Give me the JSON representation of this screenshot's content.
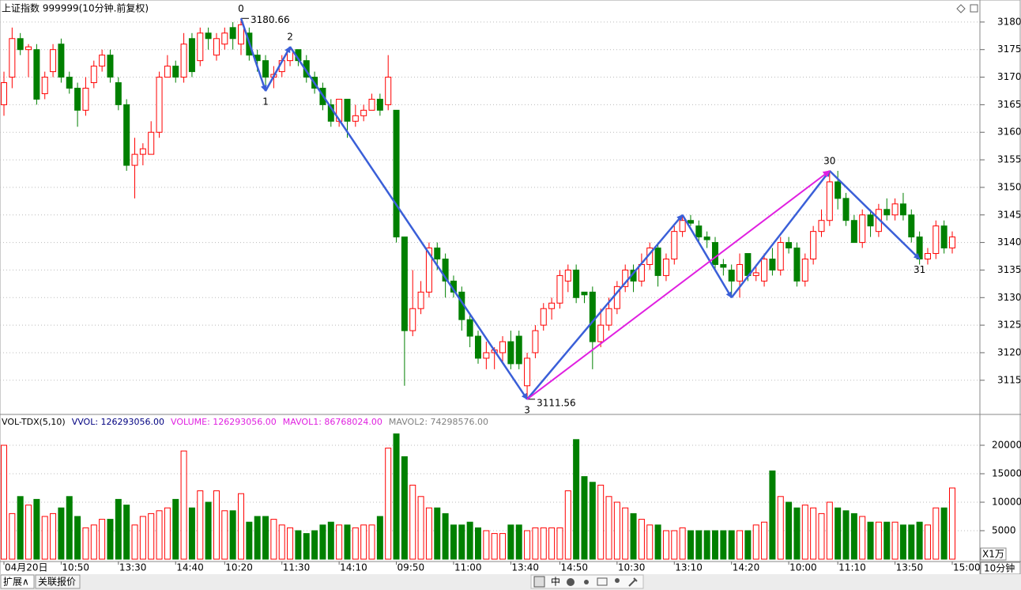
{
  "header": {
    "title": "上证指数 999999(10分钟.前复权)"
  },
  "chart_data": [
    {
      "type": "candlestick",
      "x": [
        "04月20日",
        null,
        null,
        null,
        null,
        null,
        null,
        "10:50",
        null,
        null,
        null,
        null,
        null,
        null,
        "13:30",
        null,
        null,
        null,
        null,
        null,
        null,
        "14:40",
        null,
        null,
        null,
        null,
        null,
        "10:20",
        null,
        null,
        null,
        null,
        null,
        null,
        "11:30",
        null,
        null,
        null,
        null,
        null,
        null,
        "14:10",
        null,
        null,
        null,
        null,
        null,
        null,
        "09:50",
        null,
        null,
        null,
        null,
        null,
        null,
        "11:00",
        null,
        null,
        null,
        null,
        null,
        null,
        "13:40",
        null,
        null,
        null,
        null,
        null,
        "14:50",
        null,
        null,
        null,
        null,
        null,
        null,
        "10:30",
        null,
        null,
        null,
        null,
        null,
        null,
        "13:10",
        null,
        null,
        null,
        null,
        null,
        null,
        "14:20",
        null,
        null,
        null,
        null,
        null,
        null,
        "10:00",
        null,
        null,
        null,
        null,
        null,
        "11:10",
        null,
        null,
        null,
        null,
        null,
        null,
        "13:50",
        null,
        null,
        null,
        null,
        null,
        null,
        "15:00"
      ],
      "open": [
        3165,
        3170,
        3177,
        3175,
        3175,
        3167,
        3171,
        3176,
        3170,
        3168,
        3164,
        3169,
        3172,
        3174,
        3169,
        3165,
        3154,
        3156,
        3156,
        3160,
        3170,
        3172,
        3170,
        3177,
        3173,
        3178,
        3174,
        3176,
        3179,
        3176,
        3178,
        3174,
        3173,
        3170,
        3171,
        3173,
        3175,
        3173,
        3170,
        3168,
        3165,
        3162,
        3166,
        3162,
        3163,
        3164,
        3166,
        3165,
        3164,
        3141,
        3124,
        3128,
        3131,
        3139,
        3137,
        3133,
        3131,
        3126,
        3123,
        3119,
        3120,
        3120,
        3122,
        3123,
        3114,
        3120,
        3125,
        3128,
        3129,
        3133,
        3135,
        3131,
        3131,
        3122,
        3125,
        3128,
        3132,
        3135,
        3133,
        3136,
        3139,
        3134,
        3137,
        3142,
        3144,
        3143,
        3141,
        3140,
        3136,
        3135,
        3133,
        3138,
        3134,
        3133,
        3137,
        3135,
        3140,
        3139,
        3133,
        3137,
        3142,
        3144,
        3151,
        3148,
        3144,
        3140,
        3145,
        3142,
        3146,
        3145,
        3147,
        3145,
        3141,
        3137,
        3138,
        3143,
        3139
      ],
      "close": [
        3169,
        3177,
        3175,
        3175.5,
        3166,
        3170,
        3175,
        3170,
        3168,
        3164,
        3168,
        3172,
        3174,
        3170,
        3165,
        3154,
        3156,
        3157,
        3160,
        3170,
        3172,
        3170,
        3176,
        3171,
        3178,
        3177,
        3177,
        3178,
        3177,
        3179.5,
        3174,
        3173,
        3170,
        3170.5,
        3173,
        3175,
        3173,
        3170,
        3168,
        3165,
        3162,
        3166,
        3162,
        3163,
        3164,
        3166,
        3164,
        3170,
        3141,
        3124,
        3128,
        3131,
        3139,
        3137,
        3133,
        3131,
        3126,
        3123,
        3119,
        3120,
        3120.5,
        3122,
        3118,
        3118,
        3119,
        3124,
        3128,
        3129,
        3134,
        3135,
        3130,
        3130.5,
        3122,
        3125,
        3128,
        3132,
        3135,
        3133,
        3136,
        3139,
        3134,
        3137,
        3142,
        3144,
        3143.5,
        3141,
        3140.5,
        3136,
        3135.5,
        3133,
        3136,
        3134,
        3134.5,
        3137,
        3135,
        3140,
        3139,
        3133,
        3137,
        3142,
        3144,
        3151,
        3148,
        3144,
        3140,
        3145,
        3143,
        3146,
        3145,
        3147,
        3145,
        3141,
        3137,
        3138,
        3143,
        3139,
        3141
      ],
      "high": [
        3171,
        3179,
        3178,
        3176,
        3176,
        3171,
        3176,
        3177,
        3171,
        3169,
        3170,
        3173,
        3175,
        3175,
        3170,
        3166,
        3159,
        3158,
        3162,
        3171,
        3174,
        3173,
        3178,
        3178,
        3179,
        3179,
        3178,
        3179,
        3180,
        3180.66,
        3179,
        3175,
        3174,
        3172,
        3174,
        3175.5,
        3175,
        3174,
        3171,
        3169,
        3166,
        3166,
        3166,
        3165,
        3165,
        3167,
        3167,
        3174,
        3164,
        3141,
        3135,
        3133,
        3140,
        3140,
        3138,
        3134,
        3132,
        3127,
        3124,
        3122,
        3121,
        3123,
        3124,
        3124,
        3120,
        3125,
        3129,
        3130,
        3135,
        3136,
        3136,
        3131,
        3132,
        3128,
        3130,
        3133,
        3136,
        3136,
        3138,
        3140,
        3140,
        3138,
        3143,
        3145,
        3145,
        3144,
        3142,
        3141,
        3137,
        3136,
        3138,
        3138,
        3136,
        3138,
        3139,
        3141,
        3141,
        3140,
        3138,
        3143,
        3146,
        3153,
        3153,
        3149,
        3145,
        3146,
        3146,
        3147,
        3148,
        3148,
        3149,
        3146,
        3142,
        3139,
        3144,
        3144,
        3142
      ],
      "low": [
        3163,
        3168,
        3174,
        3170,
        3165,
        3166,
        3170,
        3169,
        3167,
        3161,
        3163,
        3168,
        3171,
        3169,
        3164,
        3153,
        3148,
        3154,
        3156,
        3159,
        3170,
        3169,
        3169,
        3170,
        3172,
        3175,
        3173,
        3175,
        3175,
        3174,
        3173,
        3171,
        3167.5,
        3168,
        3170,
        3172,
        3172,
        3169,
        3167,
        3164,
        3161,
        3161,
        3159,
        3161,
        3162,
        3164,
        3163,
        3164,
        3140,
        3114,
        3123,
        3127,
        3130,
        3135,
        3130,
        3130,
        3124,
        3121,
        3118,
        3117,
        3117,
        3118,
        3117,
        3117,
        3111.56,
        3119,
        3124,
        3126,
        3128,
        3131,
        3129,
        3129,
        3117,
        3121,
        3124,
        3127,
        3131,
        3131,
        3132,
        3135,
        3132,
        3133,
        3136,
        3141,
        3143,
        3140,
        3139,
        3135,
        3134,
        3130,
        3130,
        3133,
        3133,
        3132,
        3134,
        3134,
        3138,
        3132,
        3132,
        3136,
        3141,
        3143,
        3146,
        3143,
        3140,
        3139,
        3141,
        3141,
        3144,
        3144,
        3144,
        3140,
        3136,
        3136,
        3137,
        3138,
        3138
      ],
      "up_color": "#ff0000",
      "down_color": "#008000",
      "ylim": [
        3108.8,
        3184
      ],
      "yticks": [
        3115,
        3120,
        3125,
        3130,
        3135,
        3140,
        3145,
        3150,
        3155,
        3160,
        3165,
        3170,
        3175,
        3180
      ],
      "grid": true,
      "wave": {
        "color": "#3a5fd8",
        "points": [
          {
            "bar": 29,
            "price": 3180.66,
            "label": "0"
          },
          {
            "bar": 32,
            "price": 3167.5,
            "label": "1"
          },
          {
            "bar": 35,
            "price": 3175.5,
            "label": "2"
          },
          {
            "bar": 64,
            "price": 3111.56,
            "label": "3"
          },
          {
            "bar": 83,
            "price": 3145
          },
          {
            "bar": 89,
            "price": 3130
          },
          {
            "bar": 101,
            "price": 3153,
            "label": "30"
          },
          {
            "bar": 112,
            "price": 3137,
            "label": "31"
          }
        ]
      },
      "link": {
        "color": "#e020e0",
        "bars": [
          64,
          101
        ],
        "prices": [
          3111.56,
          3153
        ]
      },
      "price_labels": [
        {
          "bar": 29,
          "kind": "high"
        },
        {
          "bar": 64,
          "kind": "low"
        }
      ]
    },
    {
      "type": "bar",
      "indicator": "VOL-TDX(5,10)",
      "legend": [
        {
          "text": "VVOL: 126293056.00",
          "color": "#000080"
        },
        {
          "text": "VOLUME: 126293056.00",
          "color": "#e020e0"
        },
        {
          "text": "MAVOL1: 86768024.00",
          "color": "#e020e0"
        },
        {
          "text": "MAVOL2: 74298576.00",
          "color": "#808080"
        }
      ],
      "values": [
        20000,
        8000,
        11000,
        9500,
        10500,
        7500,
        8000,
        9000,
        11000,
        7500,
        5500,
        6000,
        7000,
        7000,
        10500,
        9500,
        6000,
        7500,
        8000,
        8500,
        9000,
        10500,
        19000,
        9000,
        12000,
        10000,
        12000,
        8500,
        8500,
        11500,
        6500,
        7500,
        7500,
        7000,
        6000,
        5500,
        5000,
        4500,
        5000,
        6000,
        6500,
        6000,
        6000,
        5500,
        6000,
        6000,
        7500,
        19500,
        22000,
        18000,
        13000,
        11000,
        9000,
        9000,
        8000,
        6000,
        6000,
        6500,
        5500,
        5000,
        4500,
        4500,
        6000,
        6000,
        5000,
        5500,
        5500,
        5500,
        5500,
        12000,
        21000,
        14500,
        13500,
        13000,
        11000,
        10000,
        9000,
        8000,
        7000,
        6000,
        6000,
        5000,
        5000,
        5500,
        5000,
        5000,
        5000,
        5000,
        5000,
        5000,
        5000,
        5000,
        6000,
        6500,
        15500,
        11000,
        10000,
        9000,
        9500,
        9000,
        8000,
        10000,
        9000,
        8500,
        8000,
        7500,
        6500,
        6500,
        6500,
        6500,
        6000,
        6000,
        6500,
        6000,
        9000,
        9000,
        12500
      ],
      "ylim": [
        0,
        22500
      ],
      "yticks": [
        5000,
        10000,
        15000,
        20000
      ],
      "grid": true,
      "unit": "X1万"
    }
  ],
  "period": "10分钟",
  "tabs": [
    "扩展∧",
    "关联报价"
  ],
  "toolbar": [
    "中"
  ]
}
